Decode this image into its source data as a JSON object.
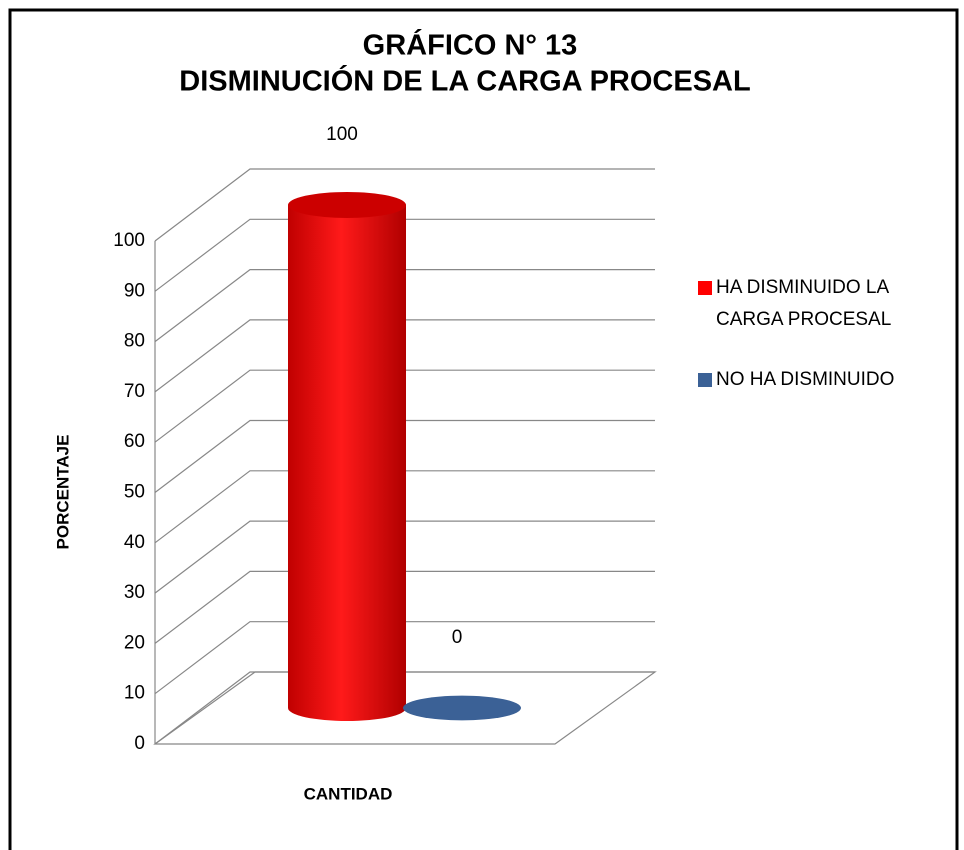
{
  "chart_data": {
    "type": "bar3d",
    "title": "GRÁFICO N° 13",
    "subtitle": "DISMINUCIÓN DE LA CARGA PROCESAL",
    "x_label": "CANTIDAD",
    "y_label": "PORCENTAJE",
    "series": [
      {
        "name": "HA DISMINUIDO LA CARGA PROCESAL",
        "color": "#ff0000",
        "values": [
          100
        ]
      },
      {
        "name": "NO HA DISMINUIDO",
        "color": "#3b6196",
        "values": [
          0
        ]
      }
    ],
    "ylim": [
      0,
      100
    ],
    "yticks": [
      0,
      10,
      20,
      30,
      40,
      50,
      60,
      70,
      80,
      90,
      100
    ],
    "grid": true,
    "legend": "right"
  }
}
